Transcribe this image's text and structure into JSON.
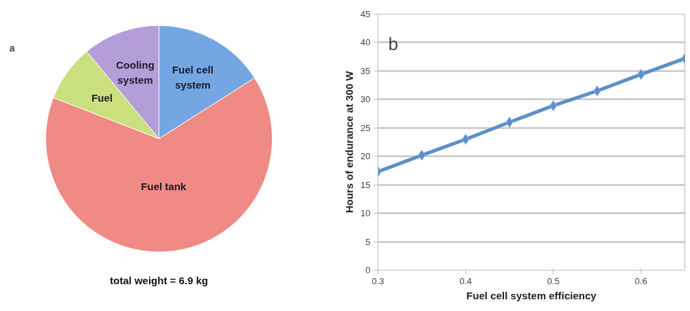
{
  "chart_data": [
    {
      "type": "pie",
      "categories": [
        "Fuel cell system",
        "Fuel tank",
        "Fuel",
        "Cooling system"
      ],
      "values": [
        16.0,
        64.9,
        8.1,
        11.0
      ],
      "colors": [
        "#74a6e4",
        "#f08a84",
        "#c9e07e",
        "#b49ed8"
      ],
      "legend": false,
      "annotations": [
        "a",
        "total weight = 6.9 kg"
      ]
    },
    {
      "type": "line",
      "xlabel": "Fuel cell system efficiency",
      "ylabel": "Hours of endurance at 300 W",
      "x": [
        0.3,
        0.35,
        0.4,
        0.45,
        0.5,
        0.55,
        0.6,
        0.65
      ],
      "series": [
        {
          "color": "#5b8fc9",
          "values": [
            17.3,
            20.2,
            23.0,
            26.0,
            28.9,
            31.5,
            34.4,
            37.2
          ]
        }
      ],
      "xlim": [
        0.3,
        0.65
      ],
      "xticks": [
        0.3,
        0.4,
        0.5,
        0.6
      ],
      "ylim": [
        0,
        45
      ],
      "yticks": [
        0,
        5,
        10,
        15,
        20,
        25,
        30,
        35,
        40,
        45
      ],
      "grid": "y",
      "marker": "diamond",
      "line_style": "solid",
      "legend": false,
      "annotations": [
        "b"
      ]
    }
  ]
}
